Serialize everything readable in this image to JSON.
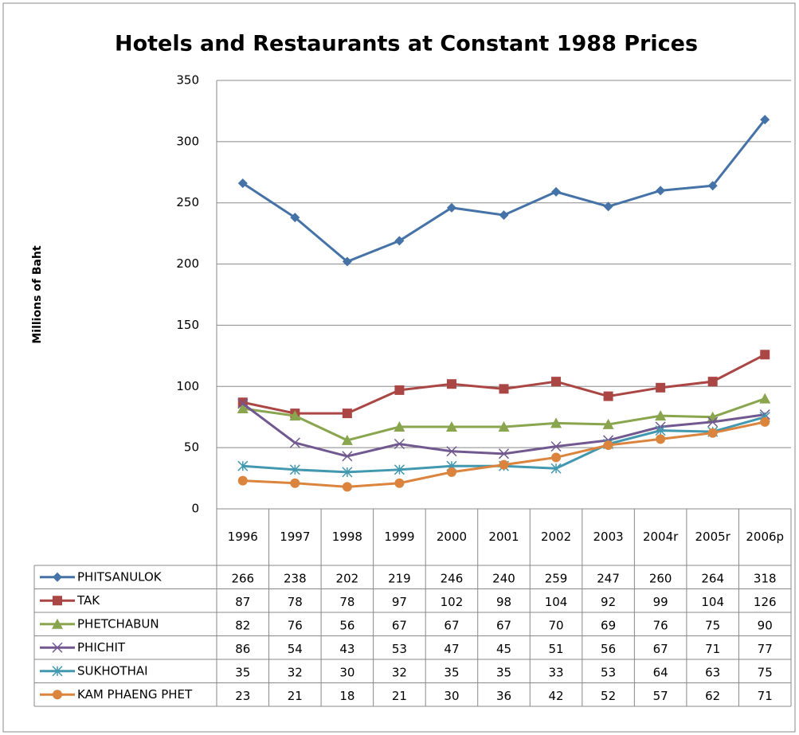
{
  "chart_data": {
    "type": "line",
    "title": "Hotels and Restaurants at Constant 1988 Prices",
    "y_label": "Millions of Baht",
    "categories": [
      "1996",
      "1997",
      "1998",
      "1999",
      "2000",
      "2001",
      "2002",
      "2003",
      "2004r",
      "2005r",
      "2006p"
    ],
    "ylim": [
      0,
      350
    ],
    "yticks": [
      0,
      50,
      100,
      150,
      200,
      250,
      300,
      350
    ],
    "grid": true,
    "series": [
      {
        "name": "PHITSANULOK",
        "color": "#4572a7",
        "marker": "diamond",
        "values": [
          266,
          238,
          202,
          219,
          246,
          240,
          259,
          247,
          260,
          264,
          318
        ]
      },
      {
        "name": "TAK",
        "color": "#aa4643",
        "marker": "square",
        "values": [
          87,
          78,
          78,
          97,
          102,
          98,
          104,
          92,
          99,
          104,
          126
        ]
      },
      {
        "name": "PHETCHABUN",
        "color": "#89a54e",
        "marker": "triangle",
        "values": [
          82,
          76,
          56,
          67,
          67,
          67,
          70,
          69,
          76,
          75,
          90
        ]
      },
      {
        "name": "PHICHIT",
        "color": "#71588f",
        "marker": "x",
        "values": [
          86,
          54,
          43,
          53,
          47,
          45,
          51,
          56,
          67,
          71,
          77
        ]
      },
      {
        "name": "SUKHOTHAI",
        "color": "#4198af",
        "marker": "star",
        "values": [
          35,
          32,
          30,
          32,
          35,
          35,
          33,
          53,
          64,
          63,
          75
        ]
      },
      {
        "name": "KAM PHAENG PHET",
        "color": "#db843d",
        "marker": "circle",
        "values": [
          23,
          21,
          18,
          21,
          30,
          36,
          42,
          52,
          57,
          62,
          71
        ]
      }
    ]
  }
}
